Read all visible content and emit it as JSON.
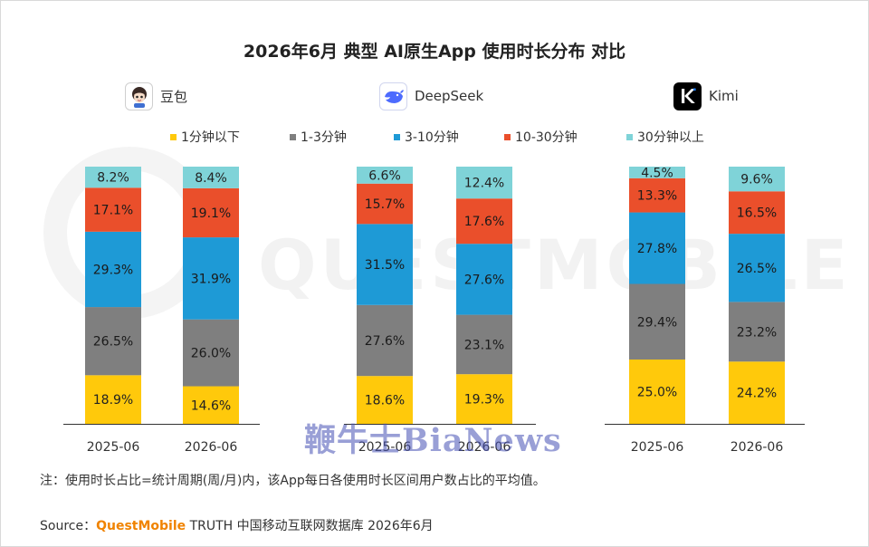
{
  "title": "2026年6月 典型 AI原生App 使用时长分布 对比",
  "apps": [
    {
      "name": "豆包",
      "icon": "doubao-icon"
    },
    {
      "name": "DeepSeek",
      "icon": "deepseek-whale-icon"
    },
    {
      "name": "Kimi",
      "icon": "kimi-k-icon"
    }
  ],
  "legend": [
    {
      "label": "1分钟以下",
      "color": "#ffc90b"
    },
    {
      "label": "1-3分钟",
      "color": "#7f7f7f"
    },
    {
      "label": "3-10分钟",
      "color": "#1e9ad6"
    },
    {
      "label": "10-30分钟",
      "color": "#ea4f2b"
    },
    {
      "label": "30分钟以上",
      "color": "#7fd3d8"
    }
  ],
  "chart_data": {
    "type": "bar",
    "stacked": true,
    "percent": true,
    "title": "2026年6月 典型 AI原生App 使用时长分布 对比",
    "groups": [
      "豆包",
      "DeepSeek",
      "Kimi"
    ],
    "categories": [
      "2025-06",
      "2026-06"
    ],
    "series": [
      {
        "name": "1分钟以下",
        "color": "#ffc90b",
        "values": [
          [
            18.9,
            14.6
          ],
          [
            18.6,
            19.3
          ],
          [
            25.0,
            24.2
          ]
        ]
      },
      {
        "name": "1-3分钟",
        "color": "#7f7f7f",
        "values": [
          [
            26.5,
            26.0
          ],
          [
            27.6,
            23.1
          ],
          [
            29.4,
            23.2
          ]
        ]
      },
      {
        "name": "3-10分钟",
        "color": "#1e9ad6",
        "values": [
          [
            29.3,
            31.9
          ],
          [
            31.5,
            27.6
          ],
          [
            27.8,
            26.5
          ]
        ]
      },
      {
        "name": "10-30分钟",
        "color": "#ea4f2b",
        "values": [
          [
            17.1,
            19.1
          ],
          [
            15.7,
            17.6
          ],
          [
            13.3,
            16.5
          ]
        ]
      },
      {
        "name": "30分钟以上",
        "color": "#7fd3d8",
        "values": [
          [
            8.2,
            8.4
          ],
          [
            6.6,
            12.4
          ],
          [
            4.5,
            9.6
          ]
        ]
      }
    ],
    "data_labels": [
      [
        [
          "18.9%",
          "14.6%"
        ],
        [
          "18.6%",
          "19.3%"
        ],
        [
          "25.0%",
          "24.2%"
        ]
      ],
      [
        [
          "26.5%",
          "26.0%"
        ],
        [
          "27.6%",
          "23.1%"
        ],
        [
          "29.4%",
          "23.2%"
        ]
      ],
      [
        [
          "29.3%",
          "31.9%"
        ],
        [
          "31.5%",
          "27.6%"
        ],
        [
          "27.8%",
          "26.5%"
        ]
      ],
      [
        [
          "17.1%",
          "19.1%"
        ],
        [
          "15.7%",
          "17.6%"
        ],
        [
          "13.3%",
          "16.5%"
        ]
      ],
      [
        [
          "8.2%",
          "8.4%"
        ],
        [
          "6.6%",
          "12.4%"
        ],
        [
          "4.5%",
          "9.6%"
        ]
      ]
    ],
    "ylim": [
      0,
      100
    ],
    "legend_position": "top",
    "grid": false
  },
  "watermark": "QUESTMOBILE",
  "overlay_watermark": "鞭牛士BiaNews",
  "note": "注：使用时长占比=统计周期(周/月)内，该App每日各使用时长区间用户数占比的平均值。",
  "source": {
    "prefix": "Source：",
    "brand": "QuestMobile",
    "rest": " TRUTH 中国移动互联网数据库 2026年6月"
  }
}
